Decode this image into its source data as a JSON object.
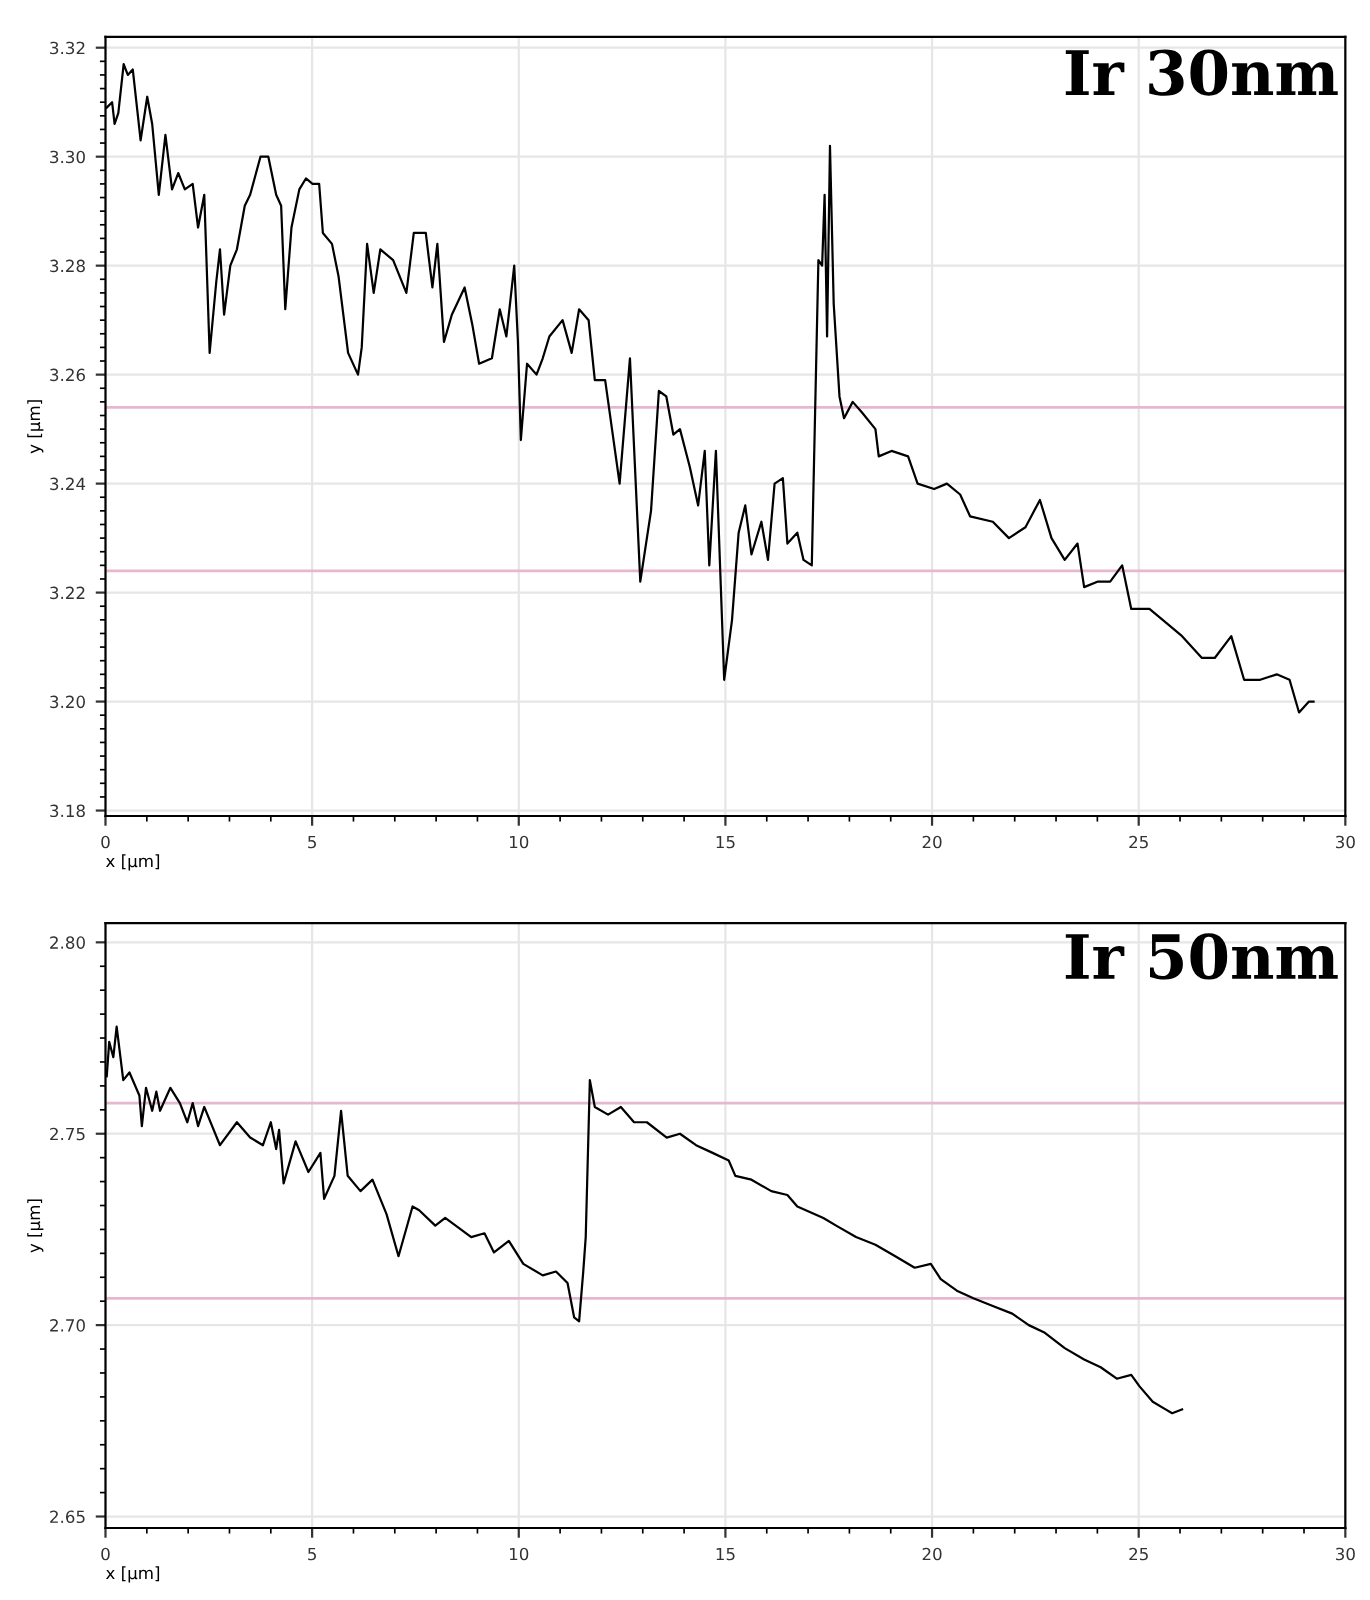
{
  "chart_data": [
    {
      "type": "line",
      "title": "Ir 30nm",
      "xlabel": "x [µm]",
      "ylabel": "y [µm]",
      "xlim": [
        0,
        30
      ],
      "ylim": [
        3.179,
        3.322
      ],
      "xticks": [
        0,
        5,
        10,
        15,
        20,
        25,
        30
      ],
      "yticks": [
        {
          "value": 3.18,
          "label": "3.18"
        },
        {
          "value": 3.2,
          "label": "3.20"
        },
        {
          "value": 3.22,
          "label": "3.22"
        },
        {
          "value": 3.24,
          "label": "3.24"
        },
        {
          "value": 3.26,
          "label": "3.26"
        },
        {
          "value": 3.28,
          "label": "3.28"
        },
        {
          "value": 3.3,
          "label": "3.30"
        },
        {
          "value": 3.32,
          "label": "3.32"
        }
      ],
      "grid": true,
      "ref_lines": [
        {
          "axis": "y",
          "value": 3.254,
          "color": "#e6b8d0"
        },
        {
          "axis": "y",
          "value": 3.224,
          "color": "#e6b8d0"
        }
      ],
      "series": [
        {
          "color": "#000000",
          "x": [
            0.03,
            0.16,
            0.22,
            0.31,
            0.44,
            0.54,
            0.66,
            0.85,
            1.01,
            1.13,
            1.29,
            1.45,
            1.61,
            1.76,
            1.92,
            2.11,
            2.24,
            2.39,
            2.52,
            2.68,
            2.77,
            2.87,
            3.02,
            3.18,
            3.37,
            3.5,
            3.75,
            3.94,
            4.13,
            4.25,
            4.35,
            4.5,
            4.69,
            4.85,
            5.01,
            5.17,
            5.26,
            5.48,
            5.64,
            5.87,
            6.11,
            6.2,
            6.33,
            6.49,
            6.65,
            6.96,
            7.28,
            7.46,
            7.75,
            7.91,
            8.03,
            8.19,
            8.38,
            8.69,
            8.88,
            9.04,
            9.35,
            9.54,
            9.7,
            9.89,
            9.98,
            10.05,
            10.2,
            10.43,
            10.58,
            10.74,
            11.06,
            11.28,
            11.46,
            11.69,
            11.84,
            12.09,
            12.44,
            12.69,
            12.94,
            13.2,
            13.39,
            13.57,
            13.74,
            13.9,
            14.14,
            14.34,
            14.5,
            14.61,
            14.77,
            14.97,
            15.16,
            15.32,
            15.48,
            15.63,
            15.87,
            16.03,
            16.19,
            16.39,
            16.5,
            16.74,
            16.89,
            17.09,
            17.25,
            17.34,
            17.4,
            17.46,
            17.53,
            17.62,
            17.76,
            17.87,
            18.08,
            18.31,
            18.63,
            18.71,
            19.02,
            19.42,
            19.65,
            20.05,
            20.36,
            20.68,
            20.92,
            21.47,
            21.86,
            22.26,
            22.61,
            22.89,
            23.21,
            23.52,
            23.68,
            24.0,
            24.31,
            24.6,
            24.82,
            25.26,
            25.58,
            26.05,
            26.53,
            26.84,
            27.24,
            27.55,
            27.94,
            28.34,
            28.65,
            28.88,
            29.12,
            29.23
          ],
          "values": [
            3.309,
            3.31,
            3.306,
            3.308,
            3.317,
            3.315,
            3.316,
            3.303,
            3.311,
            3.306,
            3.293,
            3.304,
            3.294,
            3.297,
            3.294,
            3.295,
            3.287,
            3.293,
            3.264,
            3.277,
            3.283,
            3.271,
            3.28,
            3.283,
            3.291,
            3.293,
            3.3,
            3.3,
            3.293,
            3.291,
            3.272,
            3.287,
            3.294,
            3.296,
            3.295,
            3.295,
            3.286,
            3.284,
            3.278,
            3.264,
            3.26,
            3.265,
            3.284,
            3.275,
            3.283,
            3.281,
            3.275,
            3.286,
            3.286,
            3.276,
            3.284,
            3.266,
            3.271,
            3.276,
            3.269,
            3.262,
            3.263,
            3.272,
            3.267,
            3.28,
            3.266,
            3.248,
            3.262,
            3.26,
            3.263,
            3.267,
            3.27,
            3.264,
            3.272,
            3.27,
            3.259,
            3.259,
            3.24,
            3.263,
            3.222,
            3.235,
            3.257,
            3.256,
            3.249,
            3.25,
            3.243,
            3.236,
            3.246,
            3.225,
            3.246,
            3.204,
            3.215,
            3.231,
            3.236,
            3.227,
            3.233,
            3.226,
            3.24,
            3.241,
            3.229,
            3.231,
            3.226,
            3.225,
            3.281,
            3.28,
            3.293,
            3.267,
            3.302,
            3.273,
            3.256,
            3.252,
            3.255,
            3.253,
            3.25,
            3.245,
            3.246,
            3.245,
            3.24,
            3.239,
            3.24,
            3.238,
            3.234,
            3.233,
            3.23,
            3.232,
            3.237,
            3.23,
            3.226,
            3.229,
            3.221,
            3.222,
            3.222,
            3.225,
            3.217,
            3.217,
            3.215,
            3.212,
            3.208,
            3.208,
            3.212,
            3.204,
            3.204,
            3.205,
            3.204,
            3.198,
            3.2,
            3.2
          ]
        }
      ]
    },
    {
      "type": "line",
      "title": "Ir 50nm",
      "xlabel": "x [µm]",
      "ylabel": "y [µm]",
      "xlim": [
        0,
        30
      ],
      "ylim": [
        2.647,
        2.805
      ],
      "xticks": [
        0,
        5,
        10,
        15,
        20,
        25,
        30
      ],
      "yticks": [
        {
          "value": 2.65,
          "label": "2.65"
        },
        {
          "value": 2.7,
          "label": "2.70"
        },
        {
          "value": 2.75,
          "label": "2.75"
        },
        {
          "value": 2.8,
          "label": "2.80"
        }
      ],
      "grid": true,
      "ref_lines": [
        {
          "axis": "y",
          "value": 2.758,
          "color": "#e6b8d0"
        },
        {
          "axis": "y",
          "value": 2.707,
          "color": "#e6b8d0"
        }
      ],
      "series": [
        {
          "color": "#000000",
          "x": [
            0.03,
            0.09,
            0.19,
            0.27,
            0.43,
            0.58,
            0.82,
            0.88,
            0.98,
            1.13,
            1.23,
            1.32,
            1.57,
            1.8,
            1.98,
            2.11,
            2.24,
            2.39,
            2.77,
            3.18,
            3.5,
            3.81,
            4.0,
            4.13,
            4.2,
            4.31,
            4.6,
            4.91,
            5.2,
            5.29,
            5.54,
            5.7,
            5.86,
            6.17,
            6.46,
            6.8,
            7.09,
            7.43,
            7.59,
            7.98,
            8.22,
            8.85,
            9.17,
            9.4,
            9.76,
            10.11,
            10.58,
            10.9,
            11.18,
            11.34,
            11.46,
            11.56,
            11.62,
            11.72,
            11.84,
            12.16,
            12.47,
            12.79,
            13.1,
            13.58,
            13.9,
            14.29,
            14.69,
            15.08,
            15.24,
            15.63,
            16.11,
            16.5,
            16.74,
            17.37,
            17.68,
            18.16,
            18.63,
            19.11,
            19.58,
            19.97,
            20.21,
            20.6,
            21.0,
            21.47,
            21.94,
            22.34,
            22.73,
            23.21,
            23.68,
            24.08,
            24.47,
            24.82,
            25.02,
            25.34,
            25.65,
            25.81,
            26.05
          ],
          "values": [
            2.765,
            2.774,
            2.77,
            2.778,
            2.764,
            2.766,
            2.76,
            2.752,
            2.762,
            2.756,
            2.761,
            2.756,
            2.762,
            2.758,
            2.753,
            2.758,
            2.752,
            2.757,
            2.747,
            2.753,
            2.749,
            2.747,
            2.753,
            2.746,
            2.751,
            2.737,
            2.748,
            2.74,
            2.745,
            2.733,
            2.739,
            2.756,
            2.739,
            2.735,
            2.738,
            2.729,
            2.718,
            2.731,
            2.73,
            2.726,
            2.728,
            2.723,
            2.724,
            2.719,
            2.722,
            2.716,
            2.713,
            2.714,
            2.711,
            2.702,
            2.701,
            2.714,
            2.723,
            2.764,
            2.757,
            2.755,
            2.757,
            2.753,
            2.753,
            2.749,
            2.75,
            2.747,
            2.745,
            2.743,
            2.739,
            2.738,
            2.735,
            2.734,
            2.731,
            2.728,
            2.726,
            2.723,
            2.721,
            2.718,
            2.715,
            2.716,
            2.712,
            2.709,
            2.707,
            2.705,
            2.703,
            2.7,
            2.698,
            2.694,
            2.691,
            2.689,
            2.686,
            2.687,
            2.684,
            2.68,
            2.678,
            2.677,
            2.678
          ]
        }
      ]
    }
  ]
}
